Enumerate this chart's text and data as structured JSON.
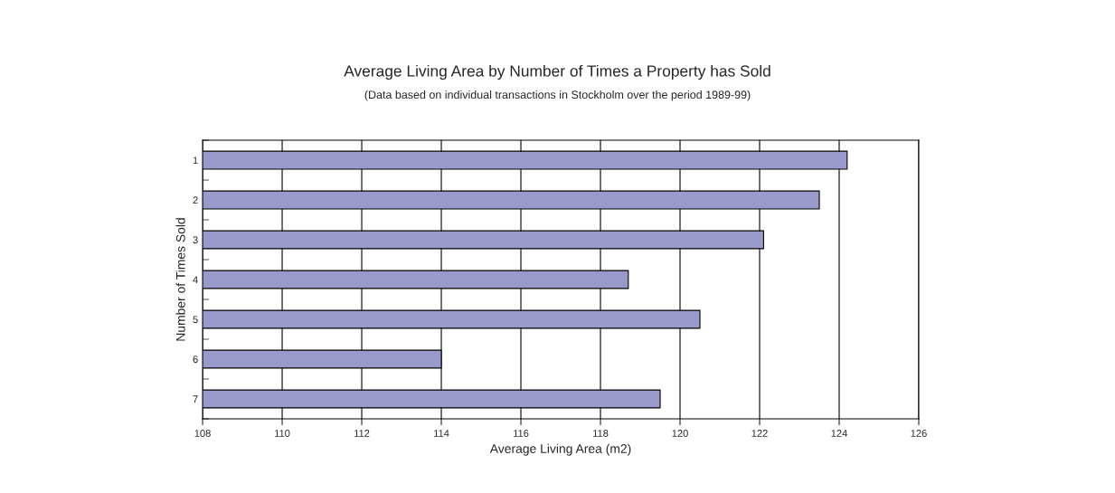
{
  "chart_data": {
    "type": "bar",
    "title": "Average Living Area by Number of Times a Property has Sold",
    "subtitle": "(Data based on individual transactions in Stockholm over the period 1989-99)",
    "xlabel": "Average Living Area (m2)",
    "ylabel": "Number of Times Sold",
    "orientation": "horizontal",
    "categories": [
      "1",
      "2",
      "3",
      "4",
      "5",
      "6",
      "7"
    ],
    "values": [
      124.2,
      123.5,
      122.1,
      118.7,
      120.5,
      114.0,
      119.5
    ],
    "color": "#9999cc",
    "xlim": [
      108,
      126
    ],
    "xticks": [
      108,
      110,
      112,
      114,
      116,
      118,
      120,
      122,
      124,
      126
    ],
    "grid": "x"
  }
}
